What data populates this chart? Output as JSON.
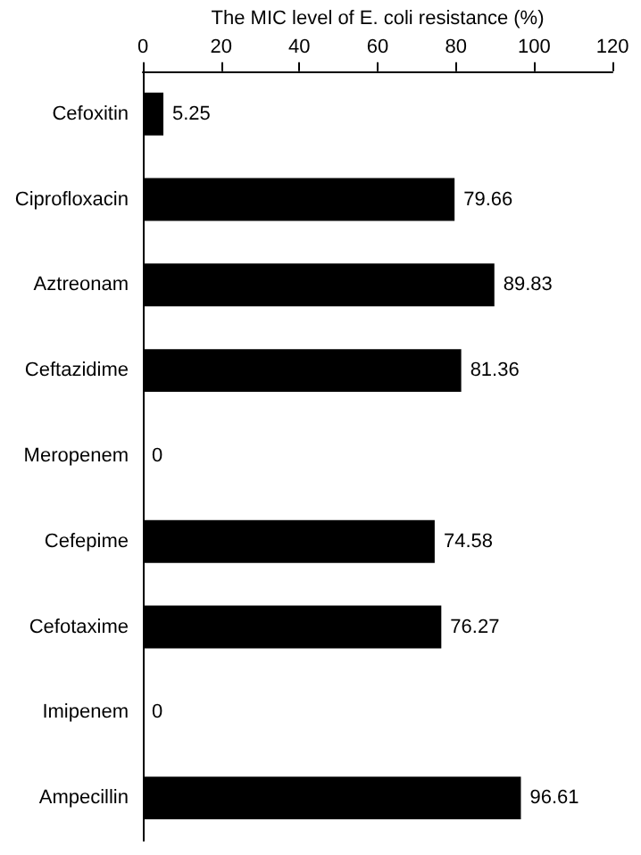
{
  "chart_data": {
    "type": "bar",
    "orientation": "horizontal",
    "xlabel": "The MIC level of E. coli resistance (%)",
    "categories": [
      "Cefoxitin",
      "Ciprofloxacin",
      "Aztreonam",
      "Ceftazidime",
      "Meropenem",
      "Cefepime",
      "Cefotaxime",
      "Imipenem",
      "Ampecillin"
    ],
    "values": [
      5.25,
      79.66,
      89.83,
      81.36,
      0,
      74.58,
      76.27,
      0,
      96.61
    ],
    "color": "#000000",
    "xlim": [
      0,
      120
    ],
    "xticks": [
      0,
      20,
      40,
      60,
      80,
      100,
      120
    ],
    "data_labels": true
  }
}
